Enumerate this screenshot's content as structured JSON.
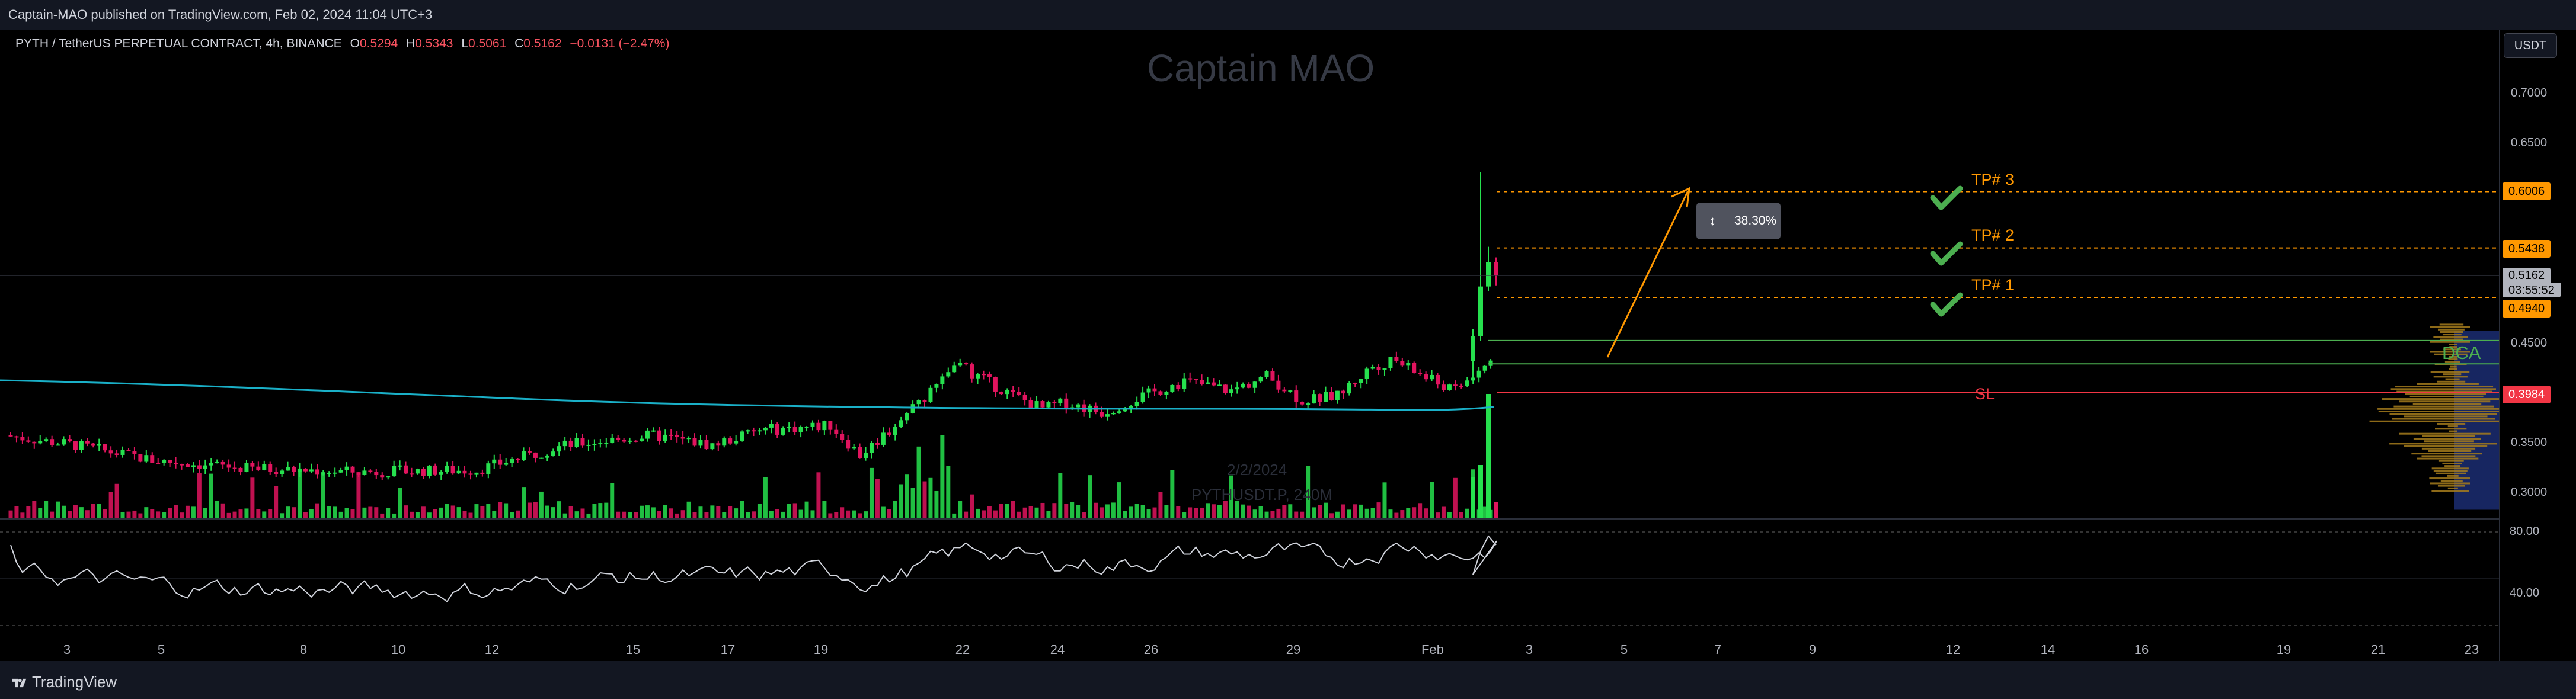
{
  "header": {
    "published": "Captain-MAO published on TradingView.com, Feb 02, 2024 11:04 UTC+3"
  },
  "legend": {
    "symbol": "PYTH / TetherUS PERPETUAL CONTRACT, 4h, BINANCE",
    "o_label": "O",
    "o_value": "0.5294",
    "h_label": "H",
    "h_value": "0.5343",
    "l_label": "L",
    "l_value": "0.5061",
    "c_label": "C",
    "c_value": "0.5162",
    "change": "−0.0131 (−2.47%)"
  },
  "watermark": {
    "author": "Captain MAO",
    "date": "2/2/2024",
    "ticker": "PYTHUSDT.P, 240M"
  },
  "price_axis": {
    "currency_button": "USDT",
    "labels": [
      "0.7000",
      "0.6500",
      "0.4500",
      "0.3500",
      "0.3000"
    ],
    "tag_tp3": "0.6006",
    "tag_tp2": "0.5438",
    "tag_current": "0.5162",
    "tag_countdown": "03:55:52",
    "tag_tp1": "0.4940",
    "tag_sl": "0.3984"
  },
  "annotations": {
    "tp3": "TP# 3",
    "tp2": "TP# 2",
    "tp1": "TP# 1",
    "sl": "SL",
    "dca": "DCA",
    "measure": "38.30%"
  },
  "oscillator": {
    "labels": [
      "80.00",
      "40.00"
    ]
  },
  "time_axis": {
    "labels": [
      "3",
      "5",
      "8",
      "10",
      "12",
      "15",
      "17",
      "19",
      "22",
      "24",
      "26",
      "29",
      "Feb",
      "3",
      "5",
      "7",
      "9",
      "12",
      "14",
      "16",
      "19",
      "21",
      "23"
    ]
  },
  "footer": {
    "brand": "TradingView"
  },
  "colors": {
    "bull": "#26e04e",
    "bear": "#e0145e",
    "ma": "#1ab0c8",
    "tp": "#ff9800",
    "sl": "#f23645",
    "axis_bg": "#000000"
  },
  "chart_data": {
    "type": "candlestick",
    "timeframe": "4h",
    "y_range": [
      0.28,
      0.72
    ],
    "levels": {
      "tp3": 0.6006,
      "tp2": 0.5438,
      "tp1": 0.494,
      "sl": 0.3984,
      "current": 0.5162
    },
    "last_candle": {
      "open": 0.5294,
      "high": 0.5343,
      "low": 0.5061,
      "close": 0.5162
    },
    "oscillator_range": [
      0,
      100
    ]
  }
}
